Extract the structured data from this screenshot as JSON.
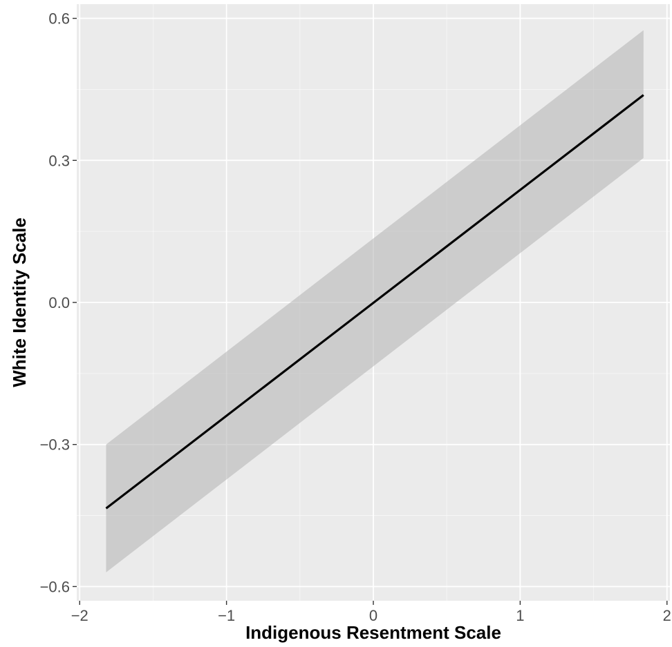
{
  "chart_data": {
    "type": "line",
    "title": "",
    "xlabel": "Indigenous Resentment Scale",
    "ylabel": "White Identity Scale",
    "xlim": [
      -2,
      2
    ],
    "ylim": [
      -0.6,
      0.6
    ],
    "x_ticks": [
      -2,
      -1,
      0,
      1,
      2
    ],
    "x_tick_labels": [
      "−2",
      "−1",
      "0",
      "1",
      "2"
    ],
    "y_ticks": [
      -0.6,
      -0.3,
      0.0,
      0.3,
      0.6
    ],
    "y_tick_labels": [
      "−0.6",
      "−0.3",
      "0.0",
      "0.3",
      "0.6"
    ],
    "grid": true,
    "series": [
      {
        "x": [
          -1.82,
          1.84
        ],
        "y": [
          -0.435,
          0.438
        ],
        "ci_lower": [
          -0.57,
          0.305
        ],
        "ci_upper": [
          -0.3,
          0.575
        ]
      }
    ],
    "colors": {
      "panel_background": "#ebebeb",
      "grid_major": "#ffffff",
      "line": "#000000",
      "ribbon": "#b3b3b3"
    }
  }
}
